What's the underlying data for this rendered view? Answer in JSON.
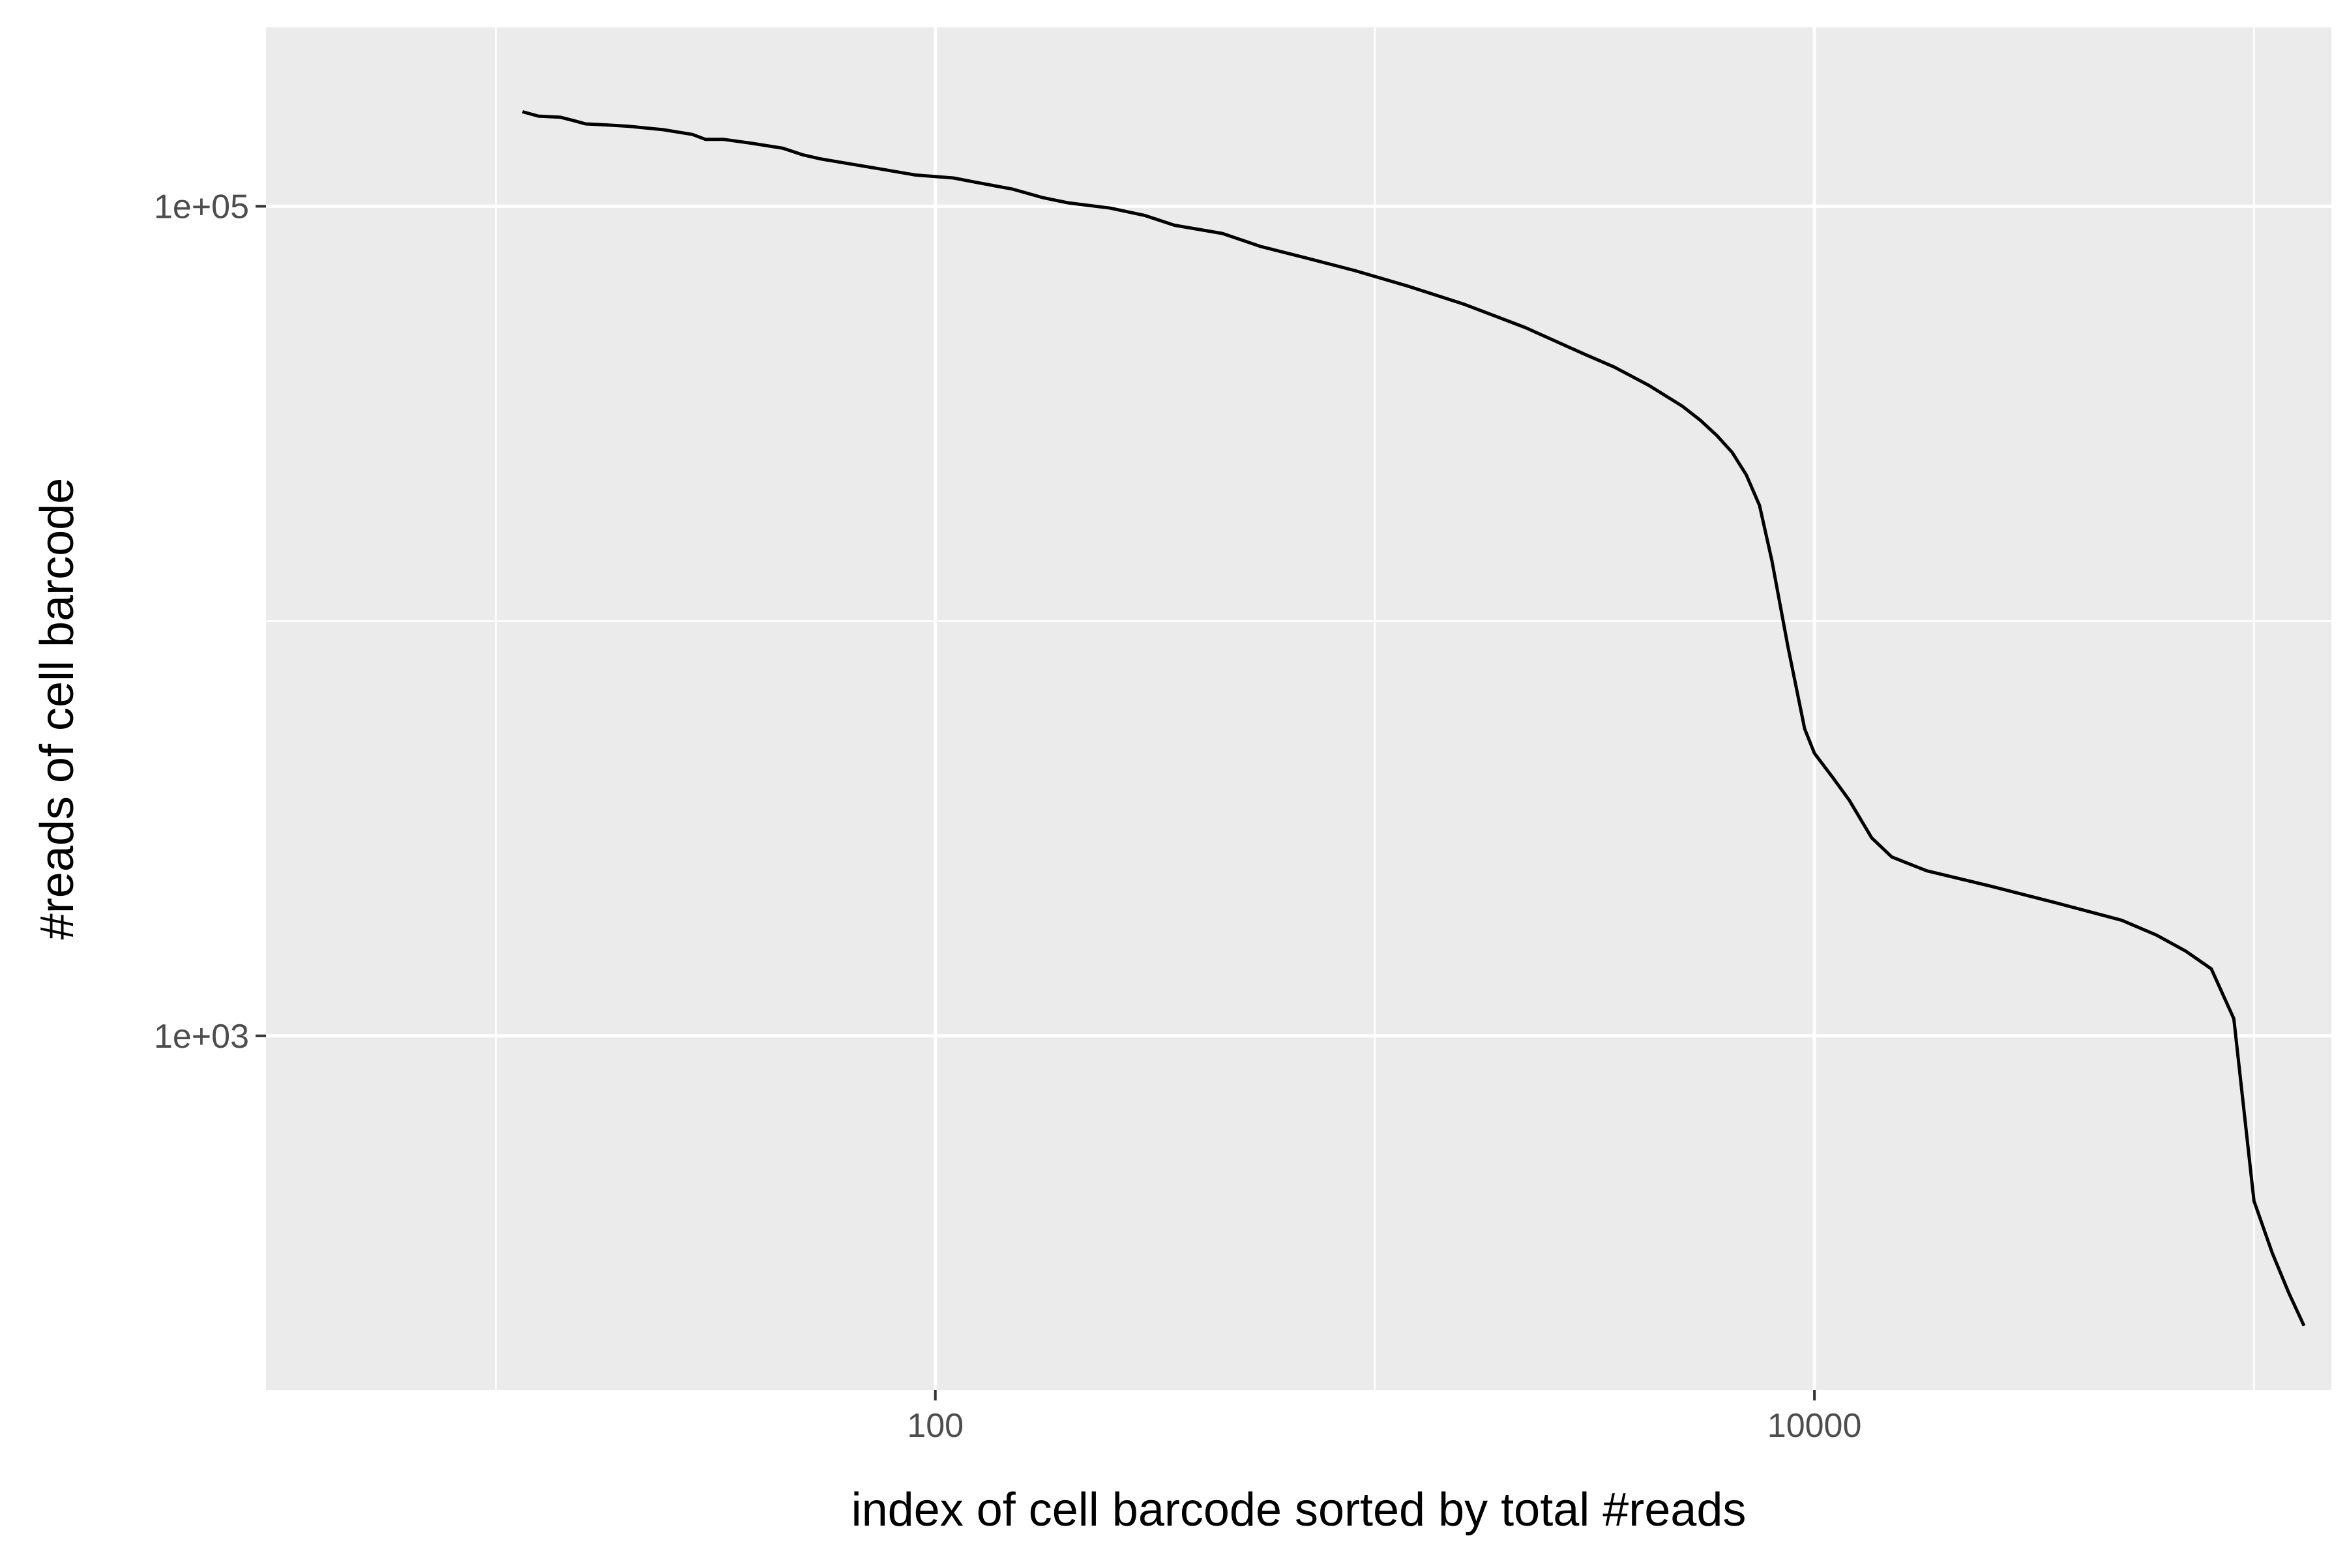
{
  "chart_data": {
    "type": "line",
    "title": "",
    "xlabel": "index of cell barcode sorted by total #reads",
    "ylabel": "#reads of cell barcode",
    "x_scale": "log10",
    "y_scale": "log10",
    "xlim": [
      3,
      150000
    ],
    "ylim": [
      140,
      270000
    ],
    "grid": true,
    "x_ticks": [
      {
        "value": 100,
        "label": "100"
      },
      {
        "value": 10000,
        "label": "10000"
      }
    ],
    "y_ticks": [
      {
        "value": 1000,
        "label": "1e+03"
      },
      {
        "value": 100000,
        "label": "1e+05"
      }
    ],
    "x_minor_grid": [
      10,
      1000,
      100000
    ],
    "y_minor_grid": [
      10000
    ],
    "series": [
      {
        "color": "#000000",
        "points": [
          [
            11.5,
            169000
          ],
          [
            12.5,
            165000
          ],
          [
            14,
            164000
          ],
          [
            15,
            161000
          ],
          [
            16,
            158000
          ],
          [
            18,
            157000
          ],
          [
            20,
            156000
          ],
          [
            24,
            153000
          ],
          [
            28,
            149000
          ],
          [
            30,
            145000
          ],
          [
            33,
            145000
          ],
          [
            38,
            142000
          ],
          [
            45,
            138000
          ],
          [
            50,
            133000
          ],
          [
            55,
            130000
          ],
          [
            60,
            128000
          ],
          [
            75,
            123000
          ],
          [
            90,
            119000
          ],
          [
            110,
            117000
          ],
          [
            125,
            114000
          ],
          [
            150,
            110000
          ],
          [
            175,
            105000
          ],
          [
            200,
            102000
          ],
          [
            250,
            99000
          ],
          [
            300,
            95000
          ],
          [
            350,
            90000
          ],
          [
            450,
            86000
          ],
          [
            550,
            80000
          ],
          [
            700,
            75000
          ],
          [
            900,
            70000
          ],
          [
            1200,
            64000
          ],
          [
            1600,
            58000
          ],
          [
            2200,
            51000
          ],
          [
            3000,
            44000
          ],
          [
            3500,
            41000
          ],
          [
            4200,
            37000
          ],
          [
            5000,
            33000
          ],
          [
            5500,
            30500
          ],
          [
            6000,
            28000
          ],
          [
            6500,
            25500
          ],
          [
            7000,
            22500
          ],
          [
            7500,
            19000
          ],
          [
            8000,
            14000
          ],
          [
            8700,
            8700
          ],
          [
            9500,
            5500
          ],
          [
            10000,
            4800
          ],
          [
            11000,
            4200
          ],
          [
            12000,
            3700
          ],
          [
            13500,
            3000
          ],
          [
            15000,
            2700
          ],
          [
            18000,
            2500
          ],
          [
            25000,
            2300
          ],
          [
            35000,
            2100
          ],
          [
            50000,
            1900
          ],
          [
            60000,
            1750
          ],
          [
            70000,
            1600
          ],
          [
            80000,
            1450
          ],
          [
            90000,
            1100
          ],
          [
            100000,
            400
          ],
          [
            110000,
            300
          ],
          [
            120000,
            240
          ],
          [
            130000,
            200
          ]
        ]
      }
    ]
  }
}
